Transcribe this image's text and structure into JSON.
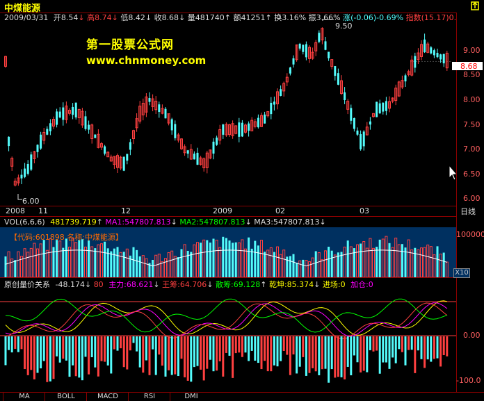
{
  "window": {
    "title": "中煤能源"
  },
  "infobar": {
    "date": "2009/03/31",
    "open_label": "开",
    "open": "8.54",
    "high_label": "高",
    "high": "8.74",
    "low_label": "低",
    "low": "8.42",
    "close_label": "收",
    "close": "8.68",
    "vol_label": "量",
    "vol": "481740",
    "amt_label": "额",
    "amt": "41251",
    "turn_label": "换",
    "turn": "3.16%",
    "amp_label": "振",
    "amp": "3.66%",
    "chg_label": "涨",
    "chg": "(-0.06)-0.69%",
    "index_label": "指数",
    "index": "(15.17)0."
  },
  "watermark": {
    "line1": "第一股票公式网",
    "line2": "www.chnmoney.com"
  },
  "price_panel": {
    "high_marker": "9.50",
    "low_marker": "6.00",
    "current_price": "8.68",
    "y_ticks": [
      "9.00",
      "8.50",
      "8.00",
      "7.50",
      "7.00",
      "6.50",
      "6.00"
    ],
    "date_labels": [
      "2008",
      "11",
      "12",
      "2009",
      "02",
      "03"
    ],
    "period_label": "日线"
  },
  "volume_panel": {
    "header": {
      "name": "VOL(6,6,6)",
      "vol": "481739.719",
      "ma1": "MA1:547807.813",
      "ma2": "MA2:547807.813",
      "ma3": "MA3:547807.813"
    },
    "code_label": "【代码:601898 名称:中煤能源】",
    "y_tick": "100000",
    "scale": "X10"
  },
  "indicator_panel": {
    "header": {
      "name": "原创量价关系",
      "val": "-48.174",
      "level": "80",
      "zhuli": "主力:68.621",
      "wangchou": "王筹:64.706",
      "sanchou": "散筹:69.128",
      "qiankun": "乾坤:85.374",
      "jinchang": "进场:0",
      "jiacang": "加仓:0"
    },
    "y_ticks": [
      "0.00",
      "-100.0"
    ]
  },
  "tabs": [
    "MA",
    "BOLL",
    "MACD",
    "RSI",
    "DMI"
  ],
  "colors": {
    "up": "#ff4040",
    "down": "#54fcfc",
    "yellow": "#ffff00",
    "magenta": "#ff00ff",
    "green": "#00ff00",
    "white": "#ffffff",
    "axis": "#8b0000"
  },
  "icons": {
    "lock": "lock-icon"
  }
}
